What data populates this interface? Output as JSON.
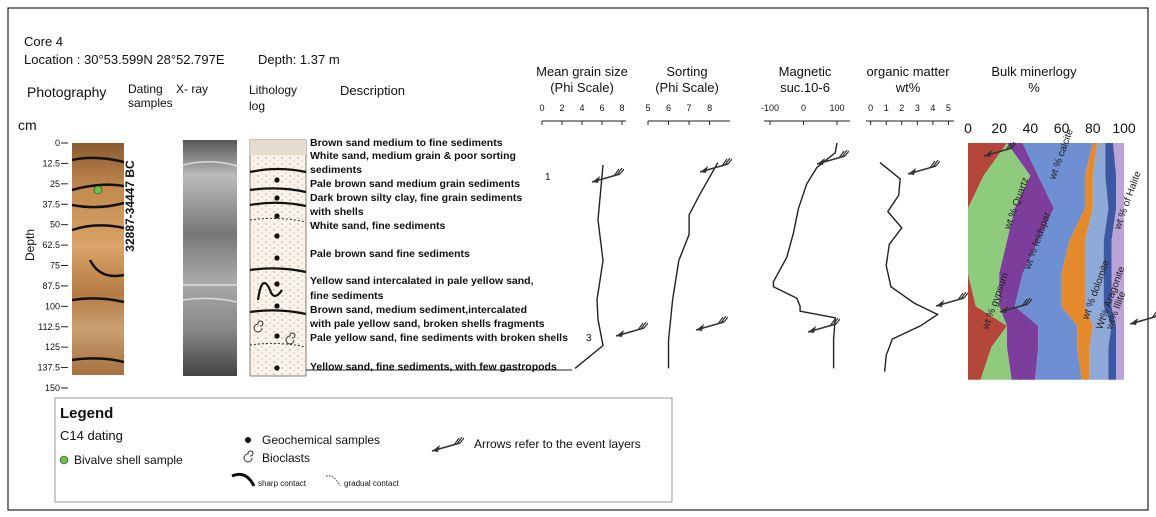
{
  "header": {
    "core": "Core 4",
    "location": "Location : 30°53.599N 28°52.797E",
    "depth": "Depth: 1.37 m"
  },
  "columns": {
    "photography": "Photography",
    "dating": [
      "Dating",
      "samples"
    ],
    "xray": "X- ray",
    "lithology": [
      "Lithology",
      "log"
    ],
    "description": "Description"
  },
  "depth_axis": {
    "unit": "cm",
    "label": "Depth",
    "ylim": [
      0,
      150
    ],
    "ticks": [
      0,
      12.5,
      25,
      37.5,
      50,
      62.5,
      75,
      87.5,
      100,
      112.5,
      125,
      137.5,
      150
    ]
  },
  "age": "32887-34447 BC",
  "descriptions": [
    "Brown sand medium to fine sediments",
    "White sand, medium grain & poor sorting",
    "sediments",
    "Pale brown sand medium grain sediments",
    "Dark brown silty clay, fine grain sediments",
    "with shells",
    "White sand, fine sediments",
    "Pale brown sand fine sediments",
    "Yellow sand intercalated in pale yellow sand,",
    "fine sediments",
    "Brown sand, medium sediment,intercalated",
    "with pale yellow sand, broken shells fragments",
    "Pale yellow sand, fine sediments with broken shells",
    "Yellow sand, fine sediments, with few gastropods"
  ],
  "annotations": [
    "1",
    "3"
  ],
  "panels": [
    {
      "title": [
        "Mean grain size",
        "(Phi Scale)"
      ],
      "xlim": [
        0,
        8
      ],
      "xticks": [
        0,
        2,
        4,
        6,
        8
      ],
      "depth": [
        13.5,
        47,
        72,
        96,
        108,
        124,
        138
      ],
      "values": [
        6.1,
        5.6,
        6.1,
        5.5,
        5.6,
        6.1,
        3.3
      ]
    },
    {
      "title": [
        "Sorting",
        "(Phi Scale)"
      ],
      "xlim": [
        5,
        8.8
      ],
      "xticks": [
        5,
        6,
        7,
        8
      ],
      "depth": [
        12,
        32,
        44,
        56,
        72,
        96,
        121,
        138
      ],
      "values": [
        8.4,
        7.5,
        7.0,
        7.0,
        6.5,
        6.2,
        6.0,
        6.0
      ]
    },
    {
      "title": [
        "Magnetic",
        "suc.10-6"
      ],
      "xlim": [
        -118,
        127
      ],
      "xticks": [
        -100,
        0,
        100
      ],
      "depth": [
        0,
        6,
        10,
        15,
        25,
        40,
        55,
        70,
        85,
        88,
        95,
        100,
        103,
        107,
        120,
        138
      ],
      "values": [
        100,
        95,
        70,
        40,
        10,
        -15,
        -30,
        -50,
        -90,
        -90,
        -20,
        -10,
        -10,
        95,
        90,
        90
      ]
    },
    {
      "title": [
        "organic matter",
        "wt%"
      ],
      "xlim": [
        -0.3,
        5.1
      ],
      "xticks": [
        0,
        1,
        2,
        3,
        4,
        5
      ],
      "depth": [
        12,
        22,
        32,
        42,
        52,
        62,
        75,
        88,
        98,
        105,
        112,
        120,
        130,
        140
      ],
      "values": [
        0.6,
        1.9,
        1.8,
        1.1,
        2.0,
        1.2,
        1.0,
        1.3,
        2.8,
        4.3,
        3.2,
        1.4,
        1.0,
        0.9
      ]
    }
  ],
  "mineralogy": {
    "title": [
      "Bulk minerlogy",
      "%"
    ],
    "xlim": [
      0,
      100
    ],
    "xticks": [
      0,
      20,
      40,
      60,
      80,
      100
    ],
    "depth": [
      0,
      20,
      40,
      60,
      80,
      100,
      112,
      125,
      145
    ],
    "series": [
      {
        "name": "wt % gypsum",
        "color": "#b5473a",
        "values": [
          25,
          10,
          0,
          0,
          0,
          5,
          25,
          15,
          8
        ]
      },
      {
        "name": "wt % Quartz",
        "color": "#8fcb7c",
        "values": [
          0,
          30,
          30,
          25,
          20,
          15,
          0,
          10,
          20
        ]
      },
      {
        "name": "wt % feldspar",
        "color": "#7d3d9b",
        "values": [
          10,
          5,
          25,
          20,
          15,
          10,
          20,
          20,
          15
        ]
      },
      {
        "name": "wt % calcite",
        "color": "#6e90d2",
        "values": [
          45,
          30,
          20,
          20,
          25,
          30,
          25,
          25,
          30
        ]
      },
      {
        "name": "wt % dolomite",
        "color": "#e48a2c",
        "values": [
          3,
          5,
          5,
          10,
          15,
          15,
          10,
          8,
          5
        ]
      },
      {
        "name": "Wt% Aragonite",
        "color": "#8fa9d9",
        "values": [
          5,
          8,
          10,
          12,
          12,
          12,
          12,
          12,
          12
        ]
      },
      {
        "name": "wt% Illite",
        "color": "#3d58a3",
        "values": [
          5,
          7,
          5,
          5,
          5,
          5,
          3,
          5,
          5
        ]
      },
      {
        "name": "wt % of Halite",
        "color": "#b9a4d8",
        "values": [
          7,
          5,
          5,
          8,
          8,
          8,
          5,
          5,
          5
        ]
      }
    ]
  },
  "legend": {
    "title": "Legend",
    "c14": "C14 dating",
    "bivalve": "Bivalve shell sample",
    "geochem": "Geochemical samples",
    "bioclasts": "Bioclasts",
    "sharp": "sharp contact",
    "gradual": "gradual contact",
    "arrows": "Arrows refer to the event layers"
  }
}
